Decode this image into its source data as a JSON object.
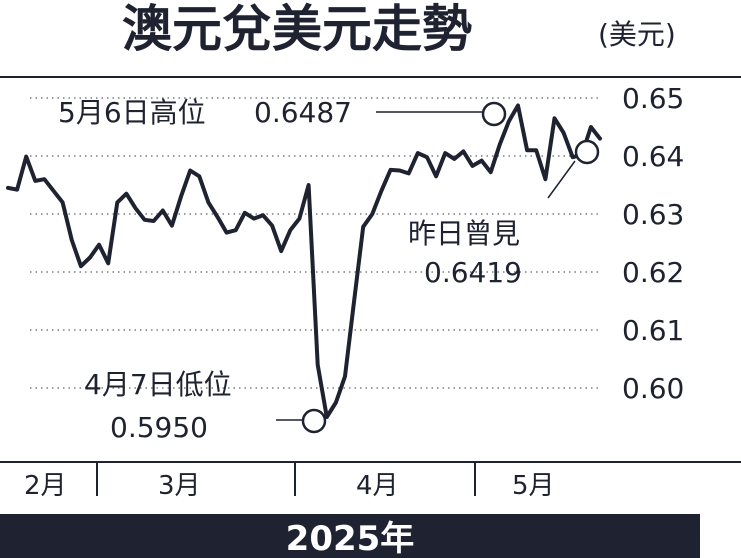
{
  "chart_data": {
    "type": "line",
    "title": "澳元兌美元走勢",
    "unit": "(美元)",
    "ylim": [
      0.592,
      0.652
    ],
    "y_ticks": [
      {
        "value": 0.65,
        "label": "0.65"
      },
      {
        "value": 0.64,
        "label": "0.64"
      },
      {
        "value": 0.63,
        "label": "0.63"
      },
      {
        "value": 0.62,
        "label": "0.62"
      },
      {
        "value": 0.61,
        "label": "0.61"
      },
      {
        "value": 0.6,
        "label": "0.60"
      }
    ],
    "grid": "dotted horizontal",
    "months": [
      "2月",
      "3月",
      "4月",
      "5月"
    ],
    "year_label": "2025年",
    "series": [
      {
        "values": [
          0.6345,
          0.6342,
          0.6399,
          0.6357,
          0.636,
          0.634,
          0.632,
          0.6255,
          0.621,
          0.6225,
          0.6247,
          0.6215,
          0.632,
          0.6335,
          0.631,
          0.629,
          0.6288,
          0.6306,
          0.628,
          0.633,
          0.6375,
          0.6365,
          0.632,
          0.6295,
          0.6268,
          0.6272,
          0.6302,
          0.6292,
          0.6298,
          0.628,
          0.6236,
          0.6272,
          0.6292,
          0.635,
          0.604,
          0.595,
          0.5975,
          0.602,
          0.615,
          0.6278,
          0.63,
          0.634,
          0.6376,
          0.6375,
          0.637,
          0.6405,
          0.6398,
          0.6365,
          0.6405,
          0.6395,
          0.6408,
          0.6383,
          0.6392,
          0.6372,
          0.642,
          0.646,
          0.6487,
          0.641,
          0.641,
          0.636,
          0.6465,
          0.644,
          0.6398,
          0.6402,
          0.645,
          0.643
        ]
      }
    ],
    "annotations": [
      {
        "label": "5月6日高位",
        "value": "0.6487"
      },
      {
        "label": "4月7日低位",
        "value": "0.5950"
      },
      {
        "label": "昨日曾見",
        "value": "0.6419"
      }
    ]
  },
  "colors": {
    "ink": "#1f2230",
    "grid": "#7a7c85",
    "band": "#1f2230"
  }
}
